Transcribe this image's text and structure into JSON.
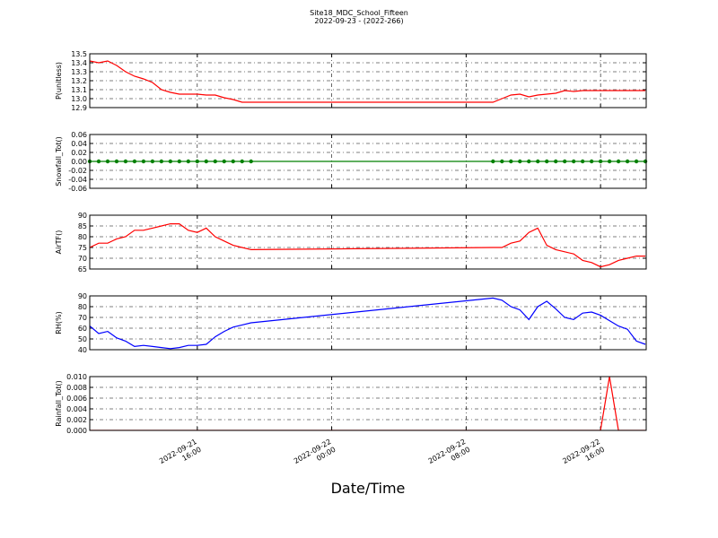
{
  "chart_data": [
    {
      "type": "line",
      "title": "Site18_MDC_School_Fifteen",
      "subtitle": "2022-09-23 - (2022-266)",
      "ylabel": "P(unitless)",
      "color": "#ff0000",
      "grid": true,
      "x": [
        "2022-09-21 09:36",
        "2022-09-21 10:08",
        "2022-09-21 10:40",
        "2022-09-21 11:12",
        "2022-09-21 11:44",
        "2022-09-21 12:16",
        "2022-09-21 12:48",
        "2022-09-21 13:20",
        "2022-09-21 13:52",
        "2022-09-21 14:24",
        "2022-09-21 14:56",
        "2022-09-21 15:28",
        "2022-09-21 16:00",
        "2022-09-21 16:32",
        "2022-09-21 17:04",
        "2022-09-21 17:36",
        "2022-09-21 18:08",
        "2022-09-21 18:40",
        "2022-09-21 19:12",
        "2022-09-22 09:36",
        "2022-09-22 10:08",
        "2022-09-22 10:40",
        "2022-09-22 11:12",
        "2022-09-22 11:44",
        "2022-09-22 12:16",
        "2022-09-22 12:48",
        "2022-09-22 13:20",
        "2022-09-22 13:52",
        "2022-09-22 14:24",
        "2022-09-22 14:56",
        "2022-09-22 15:28",
        "2022-09-22 16:00",
        "2022-09-22 16:32",
        "2022-09-22 17:04",
        "2022-09-22 17:36",
        "2022-09-22 18:08",
        "2022-09-22 18:40"
      ],
      "values": [
        13.42,
        13.4,
        13.42,
        13.37,
        13.3,
        13.25,
        13.22,
        13.18,
        13.1,
        13.07,
        13.05,
        13.05,
        13.05,
        13.04,
        13.04,
        13.01,
        12.99,
        12.96,
        12.96,
        12.96,
        13.0,
        13.04,
        13.05,
        13.02,
        13.04,
        13.05,
        13.06,
        13.09,
        13.08,
        13.09,
        13.09,
        13.09,
        13.09,
        13.09,
        13.09,
        13.09,
        13.09
      ],
      "xlim": [
        "2022-09-21 09:36",
        "2022-09-22 18:43"
      ],
      "ylim": [
        12.9,
        13.5
      ],
      "yticks": [
        12.9,
        {
          "value": 13,
          "label": "13.0"
        },
        13.1,
        13.2,
        13.3,
        13.4,
        13.5
      ]
    },
    {
      "type": "line",
      "ylabel": "Snowfall_Tot()",
      "color": "#008000",
      "marker": true,
      "grid": true,
      "x": [
        "2022-09-21 09:36",
        "2022-09-21 10:08",
        "2022-09-21 10:40",
        "2022-09-21 11:12",
        "2022-09-21 11:44",
        "2022-09-21 12:16",
        "2022-09-21 12:48",
        "2022-09-21 13:20",
        "2022-09-21 13:52",
        "2022-09-21 14:24",
        "2022-09-21 14:56",
        "2022-09-21 15:28",
        "2022-09-21 16:00",
        "2022-09-21 16:32",
        "2022-09-21 17:04",
        "2022-09-21 17:36",
        "2022-09-21 18:08",
        "2022-09-21 18:40",
        "2022-09-21 19:12",
        "2022-09-22 09:36",
        "2022-09-22 10:08",
        "2022-09-22 10:40",
        "2022-09-22 11:12",
        "2022-09-22 11:44",
        "2022-09-22 12:16",
        "2022-09-22 12:48",
        "2022-09-22 13:20",
        "2022-09-22 13:52",
        "2022-09-22 14:24",
        "2022-09-22 14:56",
        "2022-09-22 15:28",
        "2022-09-22 16:00",
        "2022-09-22 16:32",
        "2022-09-22 17:04",
        "2022-09-22 17:36",
        "2022-09-22 18:08",
        "2022-09-22 18:40"
      ],
      "values": [
        0,
        0,
        0,
        0,
        0,
        0,
        0,
        0,
        0,
        0,
        0,
        0,
        0,
        0,
        0,
        0,
        0,
        0,
        0,
        0,
        0,
        0,
        0,
        0,
        0,
        0,
        0,
        0,
        0,
        0,
        0,
        0,
        0,
        0,
        0,
        0,
        0
      ],
      "xlim": [
        "2022-09-21 09:36",
        "2022-09-22 18:43"
      ],
      "ylim": [
        -0.06,
        0.06
      ],
      "yticks": [
        -0.06,
        -0.04,
        -0.02,
        {
          "value": 0,
          "label": "0.00"
        },
        0.02,
        0.04,
        0.06
      ]
    },
    {
      "type": "line",
      "ylabel": "AirTF()",
      "color": "#ff0000",
      "grid": true,
      "x": [
        "2022-09-21 09:36",
        "2022-09-21 10:08",
        "2022-09-21 10:40",
        "2022-09-21 11:12",
        "2022-09-21 11:44",
        "2022-09-21 12:16",
        "2022-09-21 12:48",
        "2022-09-21 13:20",
        "2022-09-21 13:52",
        "2022-09-21 14:24",
        "2022-09-21 14:56",
        "2022-09-21 15:28",
        "2022-09-21 16:00",
        "2022-09-21 16:32",
        "2022-09-21 17:04",
        "2022-09-21 17:36",
        "2022-09-21 18:08",
        "2022-09-21 18:40",
        "2022-09-21 19:12",
        "2022-09-22 09:36",
        "2022-09-22 10:08",
        "2022-09-22 10:40",
        "2022-09-22 11:12",
        "2022-09-22 11:44",
        "2022-09-22 12:16",
        "2022-09-22 12:48",
        "2022-09-22 13:20",
        "2022-09-22 13:52",
        "2022-09-22 14:24",
        "2022-09-22 14:56",
        "2022-09-22 15:28",
        "2022-09-22 16:00",
        "2022-09-22 16:32",
        "2022-09-22 17:04",
        "2022-09-22 17:36",
        "2022-09-22 18:08",
        "2022-09-22 18:40"
      ],
      "values": [
        75,
        77,
        77,
        79,
        80,
        83,
        83,
        84,
        85,
        86,
        86,
        83,
        82,
        84,
        80,
        78,
        76,
        75,
        74,
        75,
        75,
        77,
        78,
        82,
        84,
        76,
        74,
        73,
        72,
        69,
        68,
        66,
        67,
        69,
        70,
        71,
        71
      ],
      "xlim": [
        "2022-09-21 09:36",
        "2022-09-22 18:43"
      ],
      "ylim": [
        65,
        90
      ],
      "yticks": [
        65,
        70,
        75,
        80,
        85,
        90
      ]
    },
    {
      "type": "line",
      "ylabel": "RH(%)",
      "color": "#0000ff",
      "grid": true,
      "x": [
        "2022-09-21 09:36",
        "2022-09-21 10:08",
        "2022-09-21 10:40",
        "2022-09-21 11:12",
        "2022-09-21 11:44",
        "2022-09-21 12:16",
        "2022-09-21 12:48",
        "2022-09-21 13:20",
        "2022-09-21 13:52",
        "2022-09-21 14:24",
        "2022-09-21 14:56",
        "2022-09-21 15:28",
        "2022-09-21 16:00",
        "2022-09-21 16:32",
        "2022-09-21 17:04",
        "2022-09-21 17:36",
        "2022-09-21 18:08",
        "2022-09-21 18:40",
        "2022-09-21 19:12",
        "2022-09-22 09:36",
        "2022-09-22 10:08",
        "2022-09-22 10:40",
        "2022-09-22 11:12",
        "2022-09-22 11:44",
        "2022-09-22 12:16",
        "2022-09-22 12:48",
        "2022-09-22 13:20",
        "2022-09-22 13:52",
        "2022-09-22 14:24",
        "2022-09-22 14:56",
        "2022-09-22 15:28",
        "2022-09-22 16:00",
        "2022-09-22 16:32",
        "2022-09-22 17:04",
        "2022-09-22 17:36",
        "2022-09-22 18:08",
        "2022-09-22 18:40"
      ],
      "values": [
        62,
        55,
        57,
        51,
        48,
        43,
        44,
        43,
        42,
        41,
        42,
        44,
        44,
        45,
        52,
        57,
        61,
        63,
        65,
        88,
        86,
        80,
        77,
        68,
        80,
        85,
        78,
        70,
        68,
        74,
        75,
        72,
        67,
        62,
        59,
        48,
        45
      ],
      "xlim": [
        "2022-09-21 09:36",
        "2022-09-22 18:43"
      ],
      "ylim": [
        40,
        90
      ],
      "yticks": [
        40,
        50,
        60,
        70,
        80,
        90
      ]
    },
    {
      "type": "line",
      "ylabel": "Rainfall_Tot()",
      "xlabel": "Date/Time",
      "color": "#ff0000",
      "grid": true,
      "x": [
        "2022-09-21 09:36",
        "2022-09-21 10:08",
        "2022-09-21 10:40",
        "2022-09-21 11:12",
        "2022-09-21 11:44",
        "2022-09-21 12:16",
        "2022-09-21 12:48",
        "2022-09-21 13:20",
        "2022-09-21 13:52",
        "2022-09-21 14:24",
        "2022-09-21 14:56",
        "2022-09-21 15:28",
        "2022-09-21 16:00",
        "2022-09-21 16:32",
        "2022-09-21 17:04",
        "2022-09-21 17:36",
        "2022-09-21 18:08",
        "2022-09-21 18:40",
        "2022-09-21 19:12",
        "2022-09-22 09:36",
        "2022-09-22 10:08",
        "2022-09-22 10:40",
        "2022-09-22 11:12",
        "2022-09-22 11:44",
        "2022-09-22 12:16",
        "2022-09-22 12:48",
        "2022-09-22 13:20",
        "2022-09-22 13:52",
        "2022-09-22 14:24",
        "2022-09-22 14:56",
        "2022-09-22 15:28",
        "2022-09-22 16:00",
        "2022-09-22 16:32",
        "2022-09-22 17:04",
        "2022-09-22 17:36",
        "2022-09-22 18:08",
        "2022-09-22 18:40"
      ],
      "values": [
        0,
        0,
        0,
        0,
        0,
        0,
        0,
        0,
        0,
        0,
        0,
        0,
        0,
        0,
        0,
        0,
        0,
        0,
        0,
        0,
        0,
        0,
        0,
        0,
        0,
        0,
        0,
        0,
        0,
        0,
        0,
        0,
        0.01,
        0,
        0,
        0,
        0
      ],
      "xlim": [
        "2022-09-21 09:36",
        "2022-09-22 18:43"
      ],
      "ylim": [
        0,
        0.01
      ],
      "yticks": [
        {
          "value": 0,
          "label": "0.000"
        },
        0.002,
        0.004,
        0.006,
        0.008,
        {
          "value": 0.01,
          "label": "0.010"
        }
      ],
      "xticks": [
        "2022-09-21 16:00",
        "2022-09-22 00:00",
        "2022-09-22 08:00",
        "2022-09-22 16:00"
      ]
    }
  ]
}
